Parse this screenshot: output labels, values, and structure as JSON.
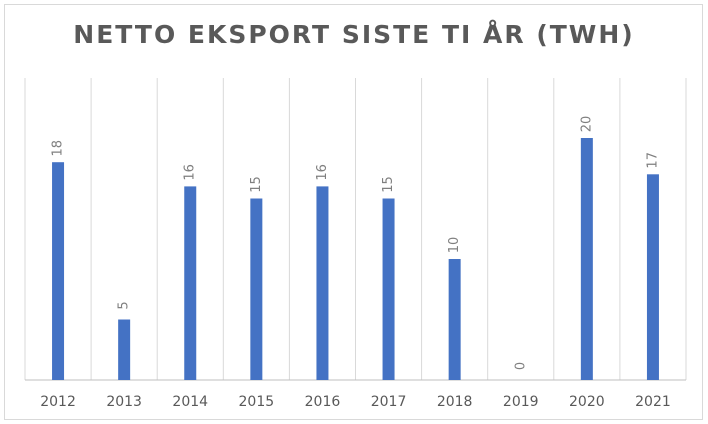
{
  "chart_data": {
    "type": "bar",
    "title": "NETTO EKSPORT SISTE TI ÅR (TWH)",
    "categories": [
      "2012",
      "2013",
      "2014",
      "2015",
      "2016",
      "2017",
      "2018",
      "2019",
      "2020",
      "2021"
    ],
    "values": [
      18,
      5,
      16,
      15,
      16,
      15,
      10,
      0,
      20,
      17
    ],
    "color": "#4472c4",
    "grid": true
  }
}
